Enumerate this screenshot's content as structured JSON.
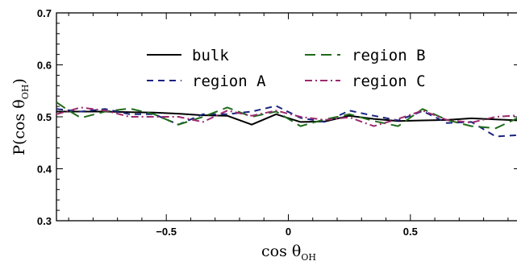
{
  "chart_data": {
    "type": "line",
    "xlabel": {
      "main": "cos θ",
      "sub": "OH"
    },
    "ylabel": {
      "main": "P(cos θ",
      "sub": "OH",
      "close": ")"
    },
    "xlim": [
      -0.95,
      0.95
    ],
    "ylim": [
      0.3,
      0.7
    ],
    "xticks": [
      -0.5,
      0,
      0.5
    ],
    "xtick_labels": [
      "−0.5",
      "0",
      "0.5"
    ],
    "yticks": [
      0.3,
      0.4,
      0.5,
      0.6,
      0.7
    ],
    "ytick_labels": [
      "0.3",
      "0.4",
      "0.5",
      "0.6",
      "0.7"
    ],
    "grid": false,
    "legend_position": "top-center",
    "series": [
      {
        "name": "bulk",
        "color": "#000000",
        "dash": "solid",
        "x": [
          -0.95,
          -0.85,
          -0.75,
          -0.65,
          -0.55,
          -0.45,
          -0.35,
          -0.25,
          -0.15,
          -0.05,
          0.05,
          0.15,
          0.25,
          0.35,
          0.45,
          0.55,
          0.65,
          0.75,
          0.85,
          0.95
        ],
        "y": [
          0.51,
          0.51,
          0.51,
          0.509,
          0.508,
          0.506,
          0.503,
          0.502,
          0.485,
          0.505,
          0.49,
          0.491,
          0.502,
          0.496,
          0.492,
          0.493,
          0.494,
          0.497,
          0.495,
          0.493
        ]
      },
      {
        "name": "region A",
        "color": "#1a237e",
        "dash": "8,6",
        "x": [
          -0.95,
          -0.85,
          -0.75,
          -0.65,
          -0.55,
          -0.45,
          -0.35,
          -0.25,
          -0.15,
          -0.05,
          0.05,
          0.15,
          0.25,
          0.35,
          0.45,
          0.55,
          0.65,
          0.75,
          0.85,
          0.95
        ],
        "y": [
          0.515,
          0.51,
          0.515,
          0.505,
          0.505,
          0.485,
          0.505,
          0.505,
          0.51,
          0.521,
          0.498,
          0.49,
          0.512,
          0.502,
          0.493,
          0.511,
          0.488,
          0.49,
          0.462,
          0.465
        ]
      },
      {
        "name": "region B",
        "color": "#1f6b1a",
        "dash": "13,7",
        "x": [
          -0.95,
          -0.9,
          -0.85,
          -0.75,
          -0.65,
          -0.55,
          -0.45,
          -0.35,
          -0.25,
          -0.15,
          -0.05,
          0.05,
          0.15,
          0.25,
          0.35,
          0.45,
          0.55,
          0.65,
          0.75,
          0.85,
          0.95
        ],
        "y": [
          0.528,
          0.512,
          0.498,
          0.51,
          0.516,
          0.505,
          0.485,
          0.5,
          0.518,
          0.5,
          0.51,
          0.482,
          0.495,
          0.505,
          0.492,
          0.482,
          0.515,
          0.494,
          0.482,
          0.478,
          0.5
        ]
      },
      {
        "name": "region C",
        "color": "#9c2a6e",
        "dash": "9,4,2,4",
        "x": [
          -0.95,
          -0.85,
          -0.75,
          -0.65,
          -0.55,
          -0.45,
          -0.35,
          -0.25,
          -0.15,
          -0.05,
          0.05,
          0.15,
          0.25,
          0.35,
          0.45,
          0.55,
          0.65,
          0.75,
          0.85,
          0.95
        ],
        "y": [
          0.505,
          0.518,
          0.512,
          0.5,
          0.5,
          0.5,
          0.49,
          0.512,
          0.502,
          0.512,
          0.5,
          0.494,
          0.499,
          0.482,
          0.496,
          0.512,
          0.494,
          0.489,
          0.5,
          0.503
        ]
      }
    ]
  }
}
